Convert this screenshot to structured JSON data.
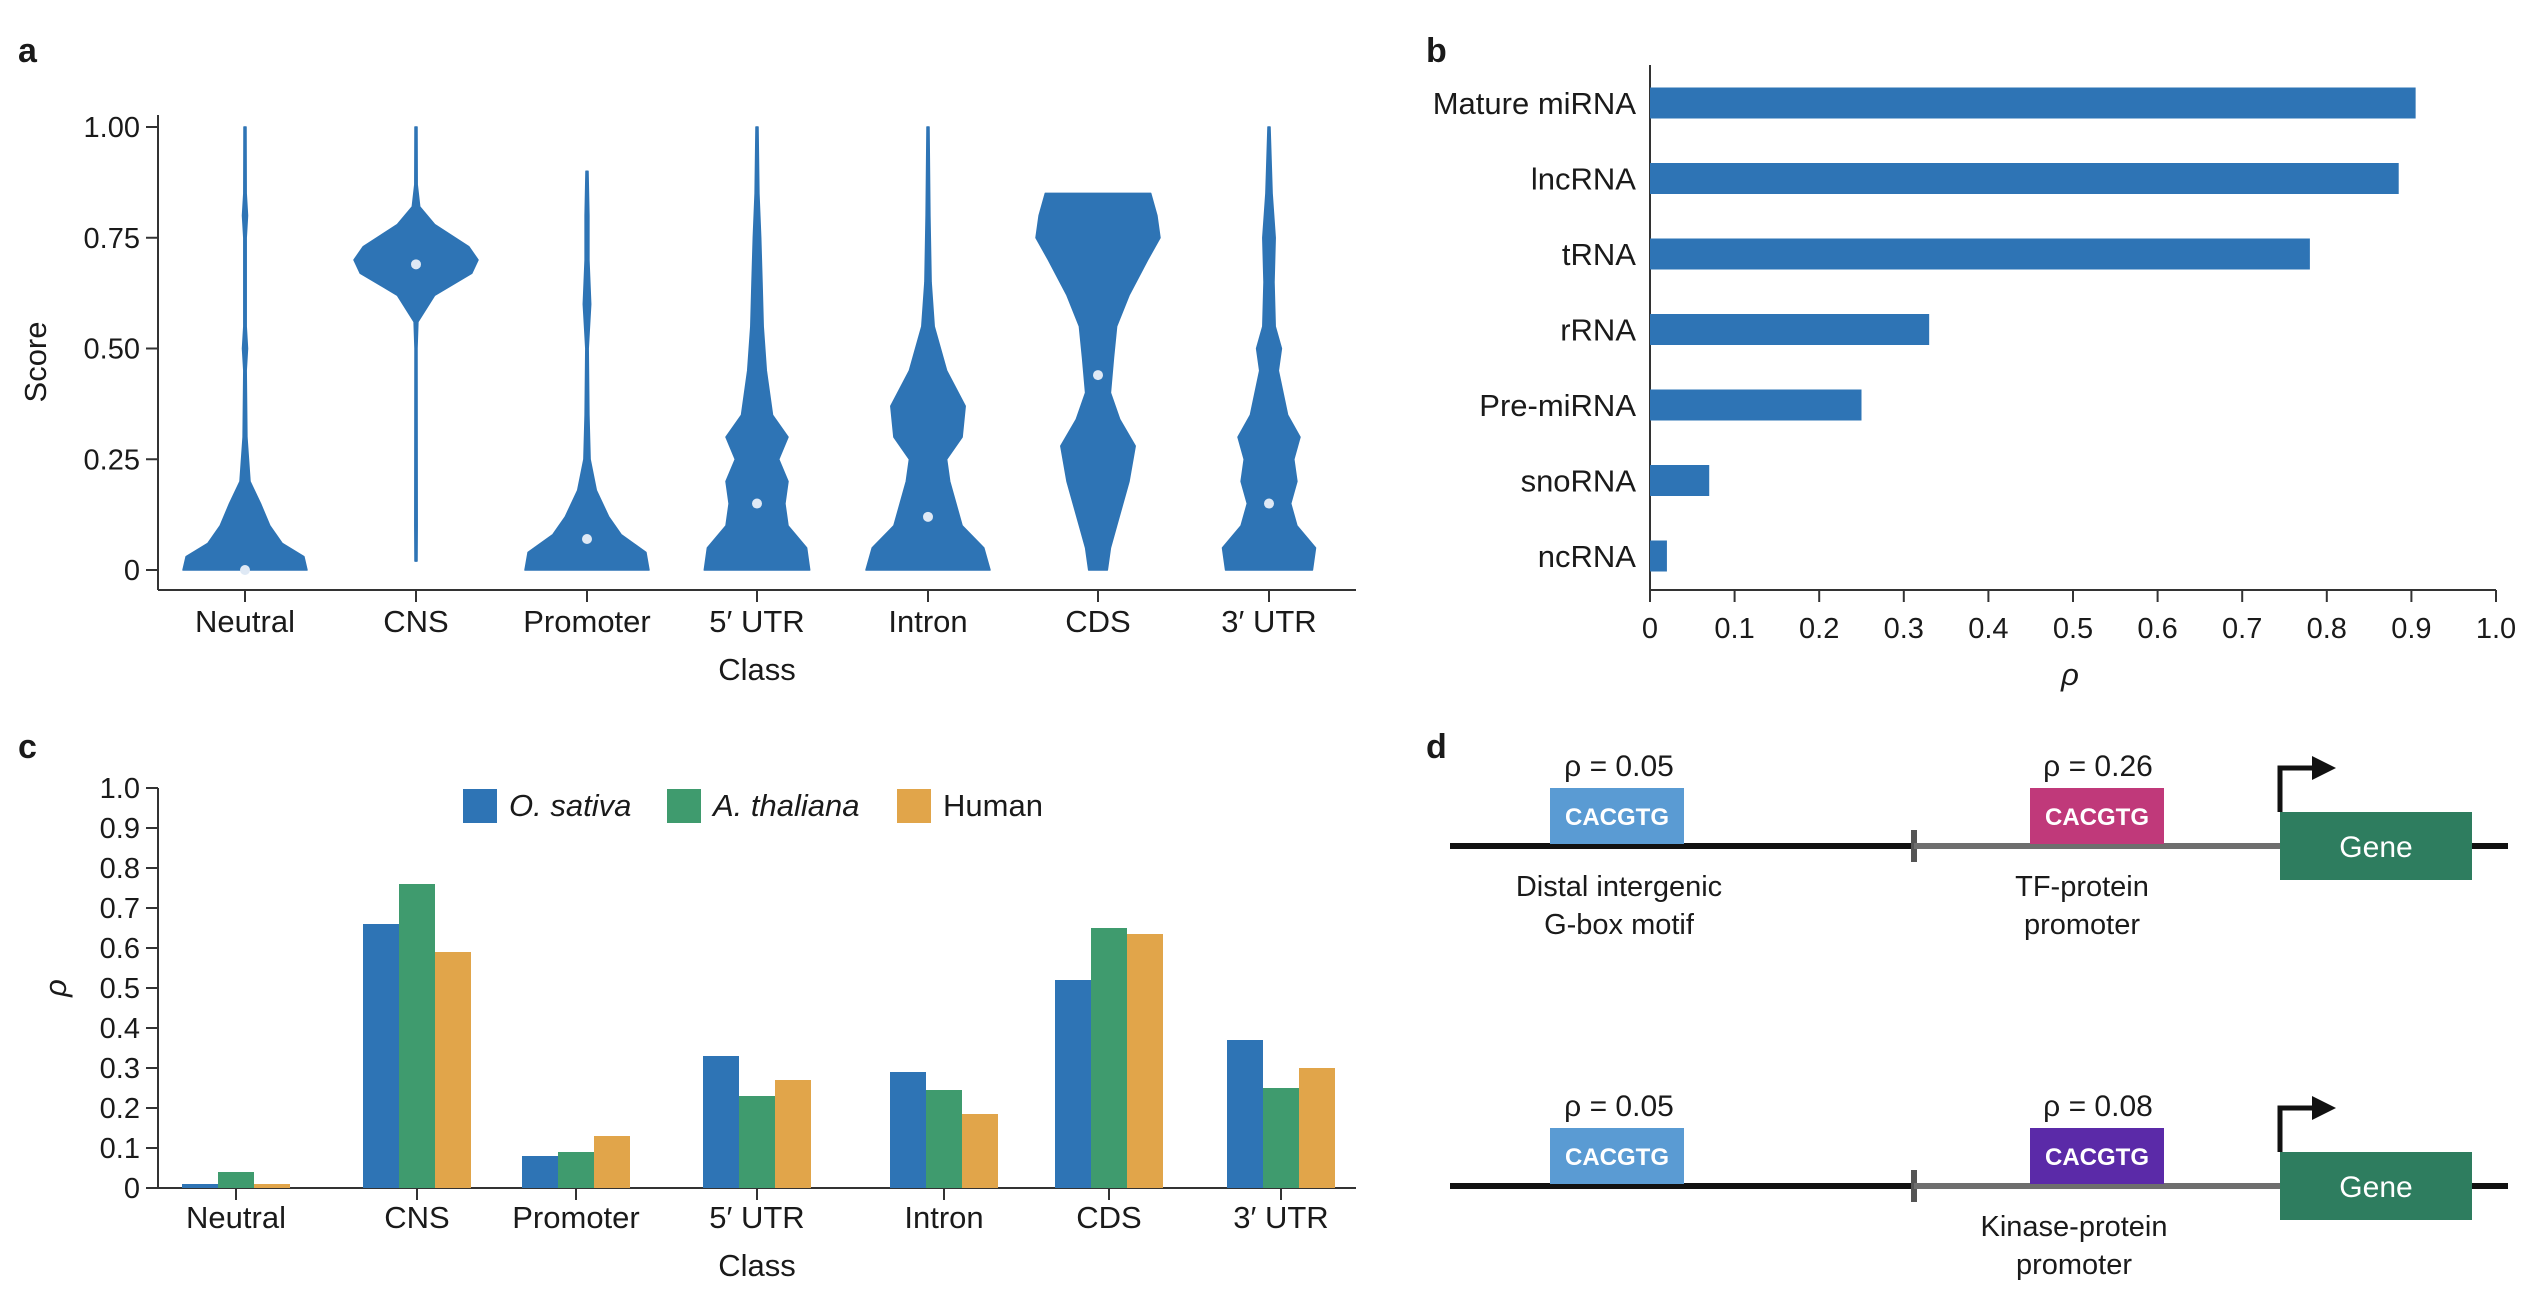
{
  "panels": {
    "a": "a",
    "b": "b",
    "c": "c",
    "d": "d"
  },
  "colors": {
    "blue": "#2e74b5",
    "green": "#3f9b6e",
    "orange": "#e1a54a",
    "axis": "#333333",
    "motif_light_blue": "#5a9bd3",
    "motif_magenta": "#c0397a",
    "motif_purple": "#5b2aa8",
    "gene_green": "#2e7d5f"
  },
  "chart_data": [
    {
      "id": "a",
      "type": "violin",
      "xlabel": "Class",
      "ylabel": "Score",
      "ylim": [
        0,
        1
      ],
      "yticks": [
        {
          "value": 0,
          "label": "0"
        },
        {
          "value": 0.25,
          "label": "0.25"
        },
        {
          "value": 0.5,
          "label": "0.50"
        },
        {
          "value": 0.75,
          "label": "0.75"
        },
        {
          "value": 1.0,
          "label": "1.00"
        }
      ],
      "categories": [
        "Neutral",
        "CNS",
        "Promoter",
        "5′ UTR",
        "Intron",
        "CDS",
        "3′ UTR"
      ],
      "medians": [
        0.0,
        0.69,
        0.07,
        0.15,
        0.12,
        0.44,
        0.15
      ],
      "ranges": [
        [
          0.0,
          1.0
        ],
        [
          0.02,
          1.0
        ],
        [
          0.0,
          0.9
        ],
        [
          0.0,
          1.0
        ],
        [
          0.0,
          1.0
        ],
        [
          0.0,
          0.85
        ],
        [
          0.0,
          1.0
        ]
      ],
      "density_profiles": [
        [
          [
            0.0,
            1.0
          ],
          [
            0.03,
            0.95
          ],
          [
            0.06,
            0.6
          ],
          [
            0.1,
            0.4
          ],
          [
            0.15,
            0.25
          ],
          [
            0.2,
            0.08
          ],
          [
            0.3,
            0.03
          ],
          [
            0.45,
            0.02
          ],
          [
            0.5,
            0.04
          ],
          [
            0.55,
            0.02
          ],
          [
            0.75,
            0.02
          ],
          [
            0.8,
            0.04
          ],
          [
            0.85,
            0.02
          ],
          [
            1.0,
            0.005
          ]
        ],
        [
          [
            0.02,
            0.005
          ],
          [
            0.1,
            0.02
          ],
          [
            0.5,
            0.01
          ],
          [
            0.56,
            0.03
          ],
          [
            0.62,
            0.3
          ],
          [
            0.67,
            0.9
          ],
          [
            0.7,
            1.0
          ],
          [
            0.73,
            0.85
          ],
          [
            0.78,
            0.3
          ],
          [
            0.82,
            0.06
          ],
          [
            0.87,
            0.02
          ],
          [
            1.0,
            0.005
          ]
        ],
        [
          [
            0.0,
            1.0
          ],
          [
            0.04,
            0.95
          ],
          [
            0.08,
            0.55
          ],
          [
            0.12,
            0.35
          ],
          [
            0.18,
            0.15
          ],
          [
            0.25,
            0.05
          ],
          [
            0.35,
            0.03
          ],
          [
            0.5,
            0.02
          ],
          [
            0.6,
            0.06
          ],
          [
            0.7,
            0.03
          ],
          [
            0.8,
            0.03
          ],
          [
            0.9,
            0.005
          ]
        ],
        [
          [
            0.0,
            0.85
          ],
          [
            0.05,
            0.8
          ],
          [
            0.1,
            0.5
          ],
          [
            0.15,
            0.45
          ],
          [
            0.2,
            0.5
          ],
          [
            0.25,
            0.35
          ],
          [
            0.3,
            0.5
          ],
          [
            0.35,
            0.25
          ],
          [
            0.45,
            0.15
          ],
          [
            0.55,
            0.1
          ],
          [
            0.65,
            0.08
          ],
          [
            0.75,
            0.06
          ],
          [
            0.85,
            0.03
          ],
          [
            1.0,
            0.005
          ]
        ],
        [
          [
            0.0,
            1.0
          ],
          [
            0.05,
            0.9
          ],
          [
            0.1,
            0.55
          ],
          [
            0.15,
            0.45
          ],
          [
            0.2,
            0.35
          ],
          [
            0.25,
            0.3
          ],
          [
            0.3,
            0.55
          ],
          [
            0.37,
            0.6
          ],
          [
            0.45,
            0.3
          ],
          [
            0.55,
            0.1
          ],
          [
            0.65,
            0.05
          ],
          [
            0.8,
            0.03
          ],
          [
            1.0,
            0.005
          ]
        ],
        [
          [
            0.0,
            0.15
          ],
          [
            0.05,
            0.2
          ],
          [
            0.1,
            0.3
          ],
          [
            0.2,
            0.5
          ],
          [
            0.28,
            0.6
          ],
          [
            0.34,
            0.35
          ],
          [
            0.4,
            0.2
          ],
          [
            0.48,
            0.25
          ],
          [
            0.55,
            0.3
          ],
          [
            0.62,
            0.5
          ],
          [
            0.7,
            0.8
          ],
          [
            0.75,
            1.0
          ],
          [
            0.8,
            0.95
          ],
          [
            0.85,
            0.85
          ]
        ],
        [
          [
            0.0,
            0.7
          ],
          [
            0.05,
            0.75
          ],
          [
            0.1,
            0.45
          ],
          [
            0.15,
            0.35
          ],
          [
            0.2,
            0.45
          ],
          [
            0.25,
            0.4
          ],
          [
            0.3,
            0.5
          ],
          [
            0.35,
            0.3
          ],
          [
            0.45,
            0.15
          ],
          [
            0.5,
            0.2
          ],
          [
            0.55,
            0.1
          ],
          [
            0.65,
            0.08
          ],
          [
            0.75,
            0.1
          ],
          [
            0.85,
            0.05
          ],
          [
            1.0,
            0.005
          ]
        ]
      ]
    },
    {
      "id": "b",
      "type": "bar",
      "orientation": "horizontal",
      "xlabel": "ρ",
      "xlim": [
        0,
        1
      ],
      "xticks": [
        {
          "value": 0,
          "label": "0"
        },
        {
          "value": 0.1,
          "label": "0.1"
        },
        {
          "value": 0.2,
          "label": "0.2"
        },
        {
          "value": 0.3,
          "label": "0.3"
        },
        {
          "value": 0.4,
          "label": "0.4"
        },
        {
          "value": 0.5,
          "label": "0.5"
        },
        {
          "value": 0.6,
          "label": "0.6"
        },
        {
          "value": 0.7,
          "label": "0.7"
        },
        {
          "value": 0.8,
          "label": "0.8"
        },
        {
          "value": 0.9,
          "label": "0.9"
        },
        {
          "value": 1.0,
          "label": "1.0"
        }
      ],
      "categories": [
        "Mature miRNA",
        "lncRNA",
        "tRNA",
        "rRNA",
        "Pre-miRNA",
        "snoRNA",
        "ncRNA"
      ],
      "values": [
        0.905,
        0.885,
        0.78,
        0.33,
        0.25,
        0.07,
        0.02
      ]
    },
    {
      "id": "c",
      "type": "bar",
      "orientation": "vertical",
      "xlabel": "Class",
      "ylabel": "ρ",
      "ylim": [
        0,
        1
      ],
      "yticks": [
        {
          "value": 0,
          "label": "0"
        },
        {
          "value": 0.1,
          "label": "0.1"
        },
        {
          "value": 0.2,
          "label": "0.2"
        },
        {
          "value": 0.3,
          "label": "0.3"
        },
        {
          "value": 0.4,
          "label": "0.4"
        },
        {
          "value": 0.5,
          "label": "0.5"
        },
        {
          "value": 0.6,
          "label": "0.6"
        },
        {
          "value": 0.7,
          "label": "0.7"
        },
        {
          "value": 0.8,
          "label": "0.8"
        },
        {
          "value": 0.9,
          "label": "0.9"
        },
        {
          "value": 1.0,
          "label": "1.0"
        }
      ],
      "categories": [
        "Neutral",
        "CNS",
        "Promoter",
        "5′ UTR",
        "Intron",
        "CDS",
        "3′ UTR"
      ],
      "series": [
        {
          "name": "O. sativa",
          "italic": true,
          "color": "#2e74b5",
          "values": [
            0.01,
            0.66,
            0.08,
            0.33,
            0.29,
            0.52,
            0.37
          ]
        },
        {
          "name": "A. thaliana",
          "italic": true,
          "color": "#3f9b6e",
          "values": [
            0.04,
            0.76,
            0.09,
            0.23,
            0.245,
            0.65,
            0.25
          ]
        },
        {
          "name": "Human",
          "italic": false,
          "color": "#e1a54a",
          "values": [
            0.01,
            0.59,
            0.13,
            0.27,
            0.185,
            0.635,
            0.3
          ]
        }
      ],
      "legend": "top"
    }
  ],
  "panel_d": {
    "rows": [
      {
        "distal_rho": "ρ = 0.05",
        "distal_motif": "CACGTG",
        "distal_label_line1": "Distal intergenic",
        "distal_label_line2": "G-box motif",
        "promoter_rho": "ρ = 0.26",
        "promoter_motif": "CACGTG",
        "promoter_label_line1": "TF-protein",
        "promoter_label_line2": "promoter",
        "gene": "Gene"
      },
      {
        "distal_rho": "ρ = 0.05",
        "distal_motif": "CACGTG",
        "promoter_rho": "ρ = 0.08",
        "promoter_motif": "CACGTG",
        "promoter_label_line1": "Kinase-protein",
        "promoter_label_line2": "promoter",
        "gene": "Gene"
      }
    ]
  }
}
